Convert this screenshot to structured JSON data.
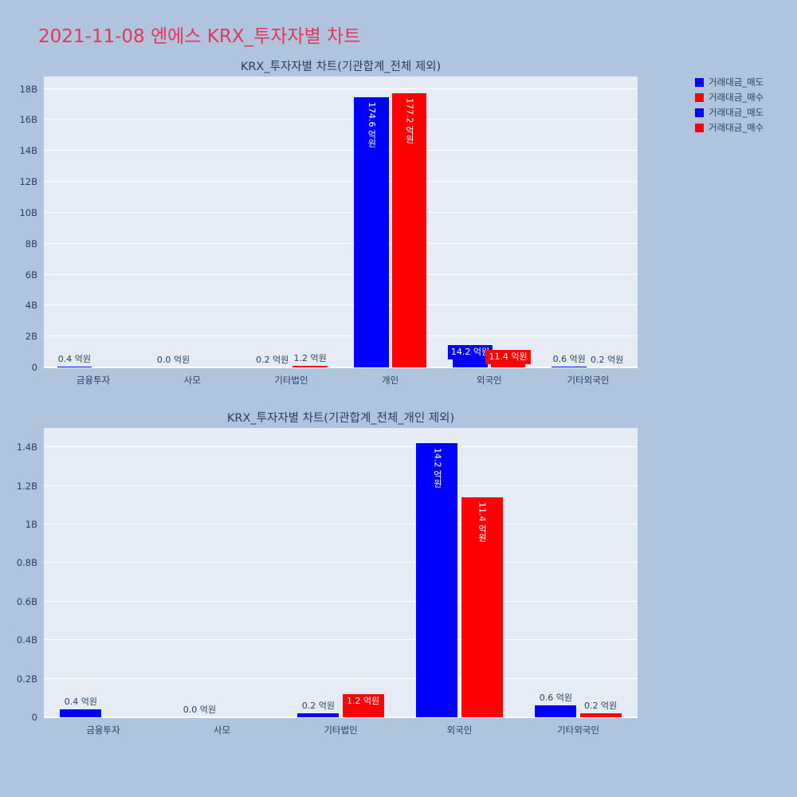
{
  "page": {
    "title": "2021-11-08 엔에스 KRX_투자자별 차트"
  },
  "colors": {
    "background": "#b0c4de",
    "plot_background": "#e5ecf6",
    "grid": "#ffffff",
    "sell_blue": "#0000ff",
    "buy_red": "#ff0000",
    "title_pink": "#e8335f",
    "axis_text": "#2a3f5f"
  },
  "legend": {
    "position": "top-right",
    "items": [
      {
        "label": "거래대금_매도",
        "color": "#0000ff"
      },
      {
        "label": "거래대금_매수",
        "color": "#ff0000"
      },
      {
        "label": "거래대금_매도",
        "color": "#0000ff"
      },
      {
        "label": "거래대금_매수",
        "color": "#ff0000"
      }
    ]
  },
  "chart_data": [
    {
      "type": "bar",
      "title": "KRX_투자자별 차트(기관합계_전체 제외)",
      "unit": "억원",
      "grid": true,
      "categories": [
        "금융투자",
        "사모",
        "기타법인",
        "개인",
        "외국인",
        "기타외국인"
      ],
      "series": [
        {
          "name": "거래대금_매도",
          "color": "#0000ff",
          "values_billions": [
            0.04,
            0,
            0.02,
            17.46,
            1.42,
            0.06
          ],
          "labels": [
            "0.4 억원",
            "0.0 억원",
            "0.2 억원",
            "174.6 억원",
            "14.2 억원",
            "0.6 억원"
          ],
          "label_modes": [
            "out",
            "out",
            "out",
            "inside-vertical",
            "box",
            "out"
          ]
        },
        {
          "name": "거래대금_매수",
          "color": "#ff0000",
          "values_billions": [
            0,
            0,
            0.12,
            17.72,
            1.14,
            0.02
          ],
          "labels": [
            "",
            "",
            "1.2 억원",
            "177.2 억원",
            "11.4 억원",
            "0.2 억원"
          ],
          "label_modes": [
            "none",
            "none",
            "out",
            "inside-vertical",
            "box",
            "out"
          ]
        }
      ],
      "ylim": [
        0,
        18.8
      ],
      "yticks": [
        {
          "v": 0,
          "label": "0"
        },
        {
          "v": 2,
          "label": "2B"
        },
        {
          "v": 4,
          "label": "4B"
        },
        {
          "v": 6,
          "label": "6B"
        },
        {
          "v": 8,
          "label": "8B"
        },
        {
          "v": 10,
          "label": "10B"
        },
        {
          "v": 12,
          "label": "12B"
        },
        {
          "v": 14,
          "label": "14B"
        },
        {
          "v": 16,
          "label": "16B"
        },
        {
          "v": 18,
          "label": "18B"
        }
      ]
    },
    {
      "type": "bar",
      "title": "KRX_투자자별 차트(기관합계_전체_개인 제외)",
      "unit": "억원",
      "grid": true,
      "categories": [
        "금융투자",
        "사모",
        "기타법인",
        "외국인",
        "기타외국인"
      ],
      "series": [
        {
          "name": "거래대금_매도",
          "color": "#0000ff",
          "values_billions": [
            0.04,
            0,
            0.02,
            1.42,
            0.06
          ],
          "labels": [
            "0.4 억원",
            "0.0 억원",
            "0.2 억원",
            "14.2 억원",
            "0.6 억원"
          ],
          "label_modes": [
            "out",
            "out",
            "out",
            "inside-vertical",
            "out"
          ]
        },
        {
          "name": "거래대금_매수",
          "color": "#ff0000",
          "values_billions": [
            0,
            0,
            0.12,
            1.14,
            0.02
          ],
          "labels": [
            "",
            "",
            "1.2 억원",
            "11.4 억원",
            "0.2 억원"
          ],
          "label_modes": [
            "none",
            "none",
            "box",
            "inside-vertical",
            "out"
          ]
        }
      ],
      "ylim": [
        0,
        1.5
      ],
      "yticks": [
        {
          "v": 0,
          "label": "0"
        },
        {
          "v": 0.2,
          "label": "0.2B"
        },
        {
          "v": 0.4,
          "label": "0.4B"
        },
        {
          "v": 0.6,
          "label": "0.6B"
        },
        {
          "v": 0.8,
          "label": "0.8B"
        },
        {
          "v": 1.0,
          "label": "1B"
        },
        {
          "v": 1.2,
          "label": "1.2B"
        },
        {
          "v": 1.4,
          "label": "1.4B"
        }
      ]
    }
  ]
}
